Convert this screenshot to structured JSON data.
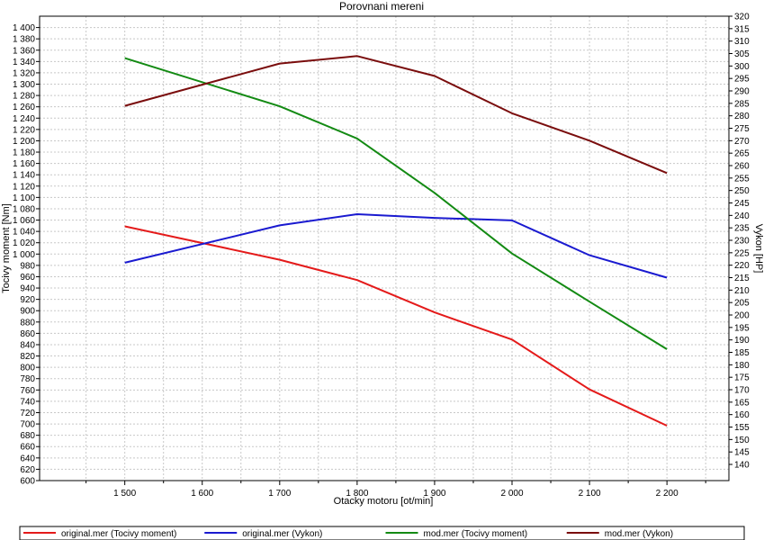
{
  "chart_data": {
    "type": "line",
    "title": "Porovnani mereni",
    "xlabel": "Otacky motoru [ot/min]",
    "ylabel_left": "Tocivy moment [Nm]",
    "ylabel_right": "Vykon [HP]",
    "xlim": [
      1390,
      2280
    ],
    "ylim_left": [
      600,
      1420
    ],
    "ylim_right": [
      133.5,
      320
    ],
    "x_ticks": [
      1500,
      1600,
      1700,
      1800,
      1900,
      2000,
      2100,
      2200
    ],
    "x_tick_labels": [
      "1 500",
      "1 600",
      "1 700",
      "1 800",
      "1 900",
      "2 000",
      "2 100",
      "2 200"
    ],
    "y_left_tick_labels": [
      "600",
      "620",
      "640",
      "660",
      "680",
      "700",
      "720",
      "740",
      "760",
      "780",
      "800",
      "820",
      "840",
      "860",
      "880",
      "900",
      "920",
      "940",
      "960",
      "980",
      "1 000",
      "1 020",
      "1 040",
      "1 060",
      "1 080",
      "1 100",
      "1 120",
      "1 140",
      "1 160",
      "1 180",
      "1 200",
      "1 220",
      "1 240",
      "1 260",
      "1 280",
      "1 300",
      "1 320",
      "1 340",
      "1 360",
      "1 380",
      "1 400"
    ],
    "y_right_tick_labels": [
      "140",
      "145",
      "150",
      "155",
      "160",
      "165",
      "170",
      "175",
      "180",
      "185",
      "190",
      "195",
      "200",
      "205",
      "210",
      "215",
      "220",
      "225",
      "230",
      "235",
      "240",
      "245",
      "250",
      "255",
      "260",
      "265",
      "270",
      "275",
      "280",
      "285",
      "290",
      "295",
      "300",
      "305",
      "310",
      "315",
      "320"
    ],
    "grid": true,
    "legend_position": "bottom",
    "series": [
      {
        "name": "original.mer  (Tocivy moment)",
        "axis": "left",
        "color": "#e41a1a",
        "x": [
          1500,
          1700,
          1800,
          1900,
          2000,
          2100,
          2200
        ],
        "values": [
          1049,
          990,
          954,
          897,
          849,
          761,
          697
        ]
      },
      {
        "name": "original.mer  (Vykon)",
        "axis": "right",
        "color": "#1a1ad0",
        "x": [
          1500,
          1700,
          1800,
          1900,
          2000,
          2100,
          2200
        ],
        "values": [
          221,
          236,
          240.5,
          239,
          238,
          224,
          215
        ]
      },
      {
        "name": "mod.mer  (Tocivy moment)",
        "axis": "left",
        "color": "#138a13",
        "x": [
          1500,
          1700,
          1800,
          1900,
          2000,
          2100,
          2200
        ],
        "values": [
          1346,
          1261,
          1204,
          1108,
          1001,
          916,
          832
        ]
      },
      {
        "name": "mod.mer  (Vykon)",
        "axis": "right",
        "color": "#7a0d0d",
        "x": [
          1500,
          1700,
          1800,
          1900,
          2000,
          2100,
          2200
        ],
        "values": [
          284,
          301,
          304,
          296,
          281,
          270,
          257
        ]
      }
    ]
  }
}
